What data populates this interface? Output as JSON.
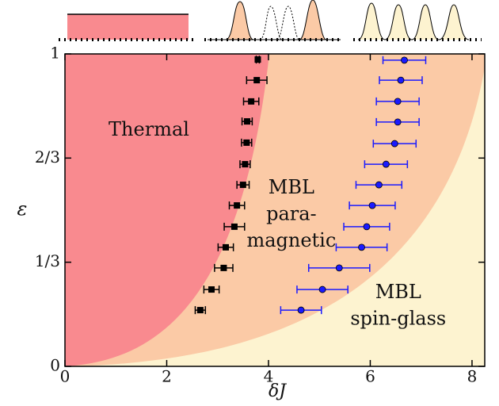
{
  "chart_data": {
    "type": "scatter",
    "xlabel": "δJ",
    "ylabel": "ε",
    "xlim": [
      0,
      8.25
    ],
    "ylim": [
      0,
      1
    ],
    "xticks": [
      0,
      2,
      4,
      6,
      8
    ],
    "yticks": [
      0,
      {
        "value": 0.3333,
        "label": "1/3"
      },
      {
        "value": 0.6667,
        "label": "2/3"
      },
      1
    ],
    "annotations": [
      {
        "text": "Thermal",
        "x": 1.65,
        "y": 0.755
      },
      {
        "text": "MBL",
        "x": 4.45,
        "y": 0.57
      },
      {
        "text": "para-",
        "x": 4.45,
        "y": 0.485
      },
      {
        "text": "magnetic",
        "x": 4.45,
        "y": 0.4
      },
      {
        "text": "MBL",
        "x": 6.55,
        "y": 0.235
      },
      {
        "text": "spin-glass",
        "x": 6.55,
        "y": 0.15
      }
    ],
    "series": [
      {
        "color": "#000000",
        "marker": "square",
        "x": [
          3.79,
          3.77,
          3.66,
          3.58,
          3.57,
          3.54,
          3.5,
          3.38,
          3.33,
          3.16,
          3.12,
          2.88,
          2.66
        ],
        "xerr": [
          0.03,
          0.2,
          0.15,
          0.1,
          0.1,
          0.1,
          0.12,
          0.15,
          0.2,
          0.15,
          0.18,
          0.15,
          0.1
        ],
        "y": [
          0.982,
          0.916,
          0.848,
          0.784,
          0.716,
          0.647,
          0.581,
          0.515,
          0.447,
          0.381,
          0.315,
          0.246,
          0.18
        ]
      },
      {
        "color": "#1a1aff",
        "marker": "circle",
        "x": [
          6.67,
          6.6,
          6.54,
          6.54,
          6.48,
          6.31,
          6.17,
          6.04,
          5.93,
          5.83,
          5.39,
          5.06,
          4.64
        ],
        "xerr": [
          0.42,
          0.42,
          0.42,
          0.42,
          0.42,
          0.42,
          0.45,
          0.45,
          0.45,
          0.5,
          0.6,
          0.5,
          0.4
        ],
        "y": [
          0.98,
          0.916,
          0.848,
          0.782,
          0.713,
          0.647,
          0.581,
          0.515,
          0.447,
          0.381,
          0.315,
          0.246,
          0.18
        ]
      }
    ]
  }
}
